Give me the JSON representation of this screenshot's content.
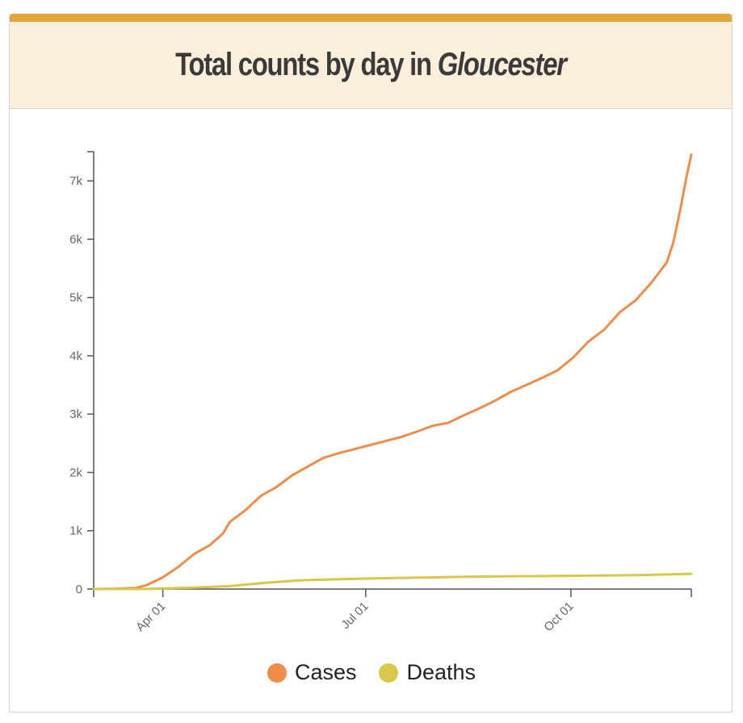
{
  "header": {
    "title_prefix": "Total counts by day in ",
    "place": "Gloucester"
  },
  "colors": {
    "accent_bar": "#e6a33a",
    "header_bg": "#fbeedb",
    "cases": "#ee8d4a",
    "deaths": "#d8c84a"
  },
  "chart_data": {
    "type": "line",
    "title": "Total counts by day in Gloucester",
    "x_domain": [
      "2020-03-01",
      "2020-11-24"
    ],
    "ylim": [
      0,
      7500
    ],
    "y_ticks": [
      0,
      1000,
      2000,
      3000,
      4000,
      5000,
      6000,
      7000
    ],
    "y_tick_labels": [
      "0",
      "1k",
      "2k",
      "3k",
      "4k",
      "5k",
      "6k",
      "7k"
    ],
    "x_ticks": [
      "2020-04-01",
      "2020-07-01",
      "2020-10-01"
    ],
    "x_tick_labels": [
      "Apr 01",
      "Jul 01",
      "Oct 01"
    ],
    "legend_position": "bottom",
    "grid": false,
    "series": [
      {
        "name": "Cases",
        "points": [
          [
            "2020-03-01",
            0
          ],
          [
            "2020-03-10",
            5
          ],
          [
            "2020-03-20",
            20
          ],
          [
            "2020-03-25",
            70
          ],
          [
            "2020-04-01",
            200
          ],
          [
            "2020-04-08",
            380
          ],
          [
            "2020-04-15",
            600
          ],
          [
            "2020-04-22",
            750
          ],
          [
            "2020-04-28",
            950
          ],
          [
            "2020-05-01",
            1150
          ],
          [
            "2020-05-08",
            1350
          ],
          [
            "2020-05-15",
            1600
          ],
          [
            "2020-05-22",
            1750
          ],
          [
            "2020-05-29",
            1950
          ],
          [
            "2020-06-05",
            2100
          ],
          [
            "2020-06-12",
            2250
          ],
          [
            "2020-06-19",
            2330
          ],
          [
            "2020-06-26",
            2400
          ],
          [
            "2020-07-03",
            2470
          ],
          [
            "2020-07-10",
            2540
          ],
          [
            "2020-07-17",
            2610
          ],
          [
            "2020-07-24",
            2700
          ],
          [
            "2020-07-31",
            2800
          ],
          [
            "2020-08-07",
            2850
          ],
          [
            "2020-08-14",
            2980
          ],
          [
            "2020-08-21",
            3100
          ],
          [
            "2020-08-28",
            3230
          ],
          [
            "2020-09-04",
            3380
          ],
          [
            "2020-09-11",
            3500
          ],
          [
            "2020-09-18",
            3620
          ],
          [
            "2020-09-25",
            3750
          ],
          [
            "2020-10-02",
            3970
          ],
          [
            "2020-10-09",
            4250
          ],
          [
            "2020-10-16",
            4450
          ],
          [
            "2020-10-23",
            4750
          ],
          [
            "2020-10-30",
            4950
          ],
          [
            "2020-11-06",
            5250
          ],
          [
            "2020-11-10",
            5450
          ],
          [
            "2020-11-13",
            5600
          ],
          [
            "2020-11-16",
            5950
          ],
          [
            "2020-11-19",
            6500
          ],
          [
            "2020-11-22",
            7100
          ],
          [
            "2020-11-24",
            7450
          ]
        ]
      },
      {
        "name": "Deaths",
        "points": [
          [
            "2020-03-01",
            0
          ],
          [
            "2020-03-25",
            2
          ],
          [
            "2020-04-01",
            10
          ],
          [
            "2020-04-15",
            25
          ],
          [
            "2020-05-01",
            50
          ],
          [
            "2020-05-15",
            100
          ],
          [
            "2020-06-01",
            150
          ],
          [
            "2020-06-15",
            165
          ],
          [
            "2020-07-01",
            180
          ],
          [
            "2020-07-15",
            190
          ],
          [
            "2020-08-01",
            200
          ],
          [
            "2020-08-15",
            210
          ],
          [
            "2020-09-01",
            218
          ],
          [
            "2020-09-15",
            222
          ],
          [
            "2020-10-01",
            228
          ],
          [
            "2020-10-15",
            232
          ],
          [
            "2020-11-01",
            240
          ],
          [
            "2020-11-15",
            252
          ],
          [
            "2020-11-24",
            262
          ]
        ]
      }
    ]
  }
}
